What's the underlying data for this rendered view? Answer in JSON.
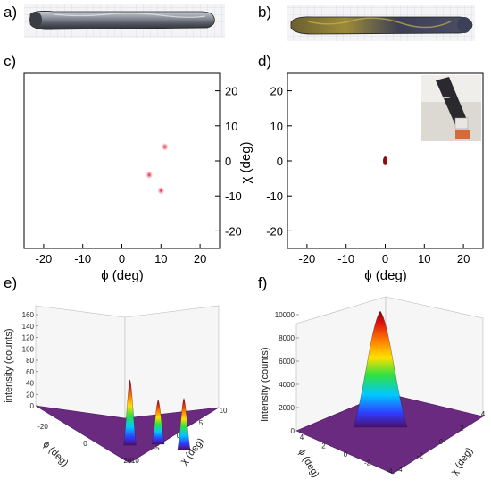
{
  "panel_labels": [
    "a)",
    "b)",
    "c)",
    "d)",
    "e)",
    "f)"
  ],
  "chart_data": [
    {
      "type": "scatter",
      "panel": "c)",
      "xlabel": "ϕ (deg)",
      "ylabel": "",
      "xlim": [
        -25,
        25
      ],
      "ylim": [
        -25,
        25
      ],
      "x_ticks": [
        "-20",
        "-10",
        "0",
        "10",
        "20"
      ],
      "y_ticks": [
        "20",
        "10",
        "0",
        "-10",
        "-20"
      ],
      "y_axis_side": "right",
      "spots": [
        {
          "x": 11,
          "y": 4
        },
        {
          "x": 7,
          "y": -4
        },
        {
          "x": 10,
          "y": -8.5
        }
      ],
      "spot_color": "#e0102a"
    },
    {
      "type": "scatter",
      "panel": "d)",
      "xlabel": "ϕ (deg)",
      "ylabel": "χ (deg)",
      "xlim": [
        -25,
        25
      ],
      "ylim": [
        -25,
        25
      ],
      "x_ticks": [
        "-20",
        "-10",
        "0",
        "10",
        "20"
      ],
      "y_ticks": [
        "20",
        "10",
        "0",
        "-10",
        "-20"
      ],
      "y_axis_side": "left",
      "spots": [
        {
          "x": 0,
          "y": 0
        }
      ],
      "spot_color": "#8a1010"
    },
    {
      "type": "surface3d",
      "panel": "e)",
      "zlabel": "intensity (counts)",
      "xlabel": "ϕ (deg)",
      "ylabel": "χ (deg)",
      "z_ticks": [
        "0",
        "20",
        "40",
        "60",
        "80",
        "100",
        "120",
        "140",
        "160"
      ],
      "x_ticks": [
        "-20",
        "0",
        "20"
      ],
      "y_ticks": [
        "10",
        "5",
        "0",
        "-5",
        "-10"
      ],
      "peaks": [
        {
          "x": 11,
          "y": 4,
          "z": 115
        },
        {
          "x": 7,
          "y": -4,
          "z": 78
        },
        {
          "x": 10,
          "y": -8.5,
          "z": 90
        }
      ]
    },
    {
      "type": "surface3d",
      "panel": "f)",
      "zlabel": "intensity (counts)",
      "xlabel": "ϕ (deg)",
      "ylabel": "χ (deg)",
      "z_ticks": [
        "0",
        "2000",
        "4000",
        "6000",
        "8000",
        "10000"
      ],
      "x_ticks": [
        "4",
        "2",
        "0",
        "-2",
        "-4"
      ],
      "y_ticks": [
        "-4",
        "-2",
        "0",
        "2",
        "4"
      ],
      "peaks": [
        {
          "x": 0,
          "y": 0,
          "z": 10500
        }
      ]
    }
  ],
  "colors": {
    "surface_base": "#5a1a6a",
    "rainbow": [
      "#4b0f6e",
      "#2f3cff",
      "#00c8ff",
      "#30e040",
      "#ffe000",
      "#ff7a00",
      "#e01010",
      "#8a0000"
    ]
  },
  "icons": [
    "metal-rod-photo",
    "coated-rod-photo",
    "sample-holder-photo"
  ]
}
